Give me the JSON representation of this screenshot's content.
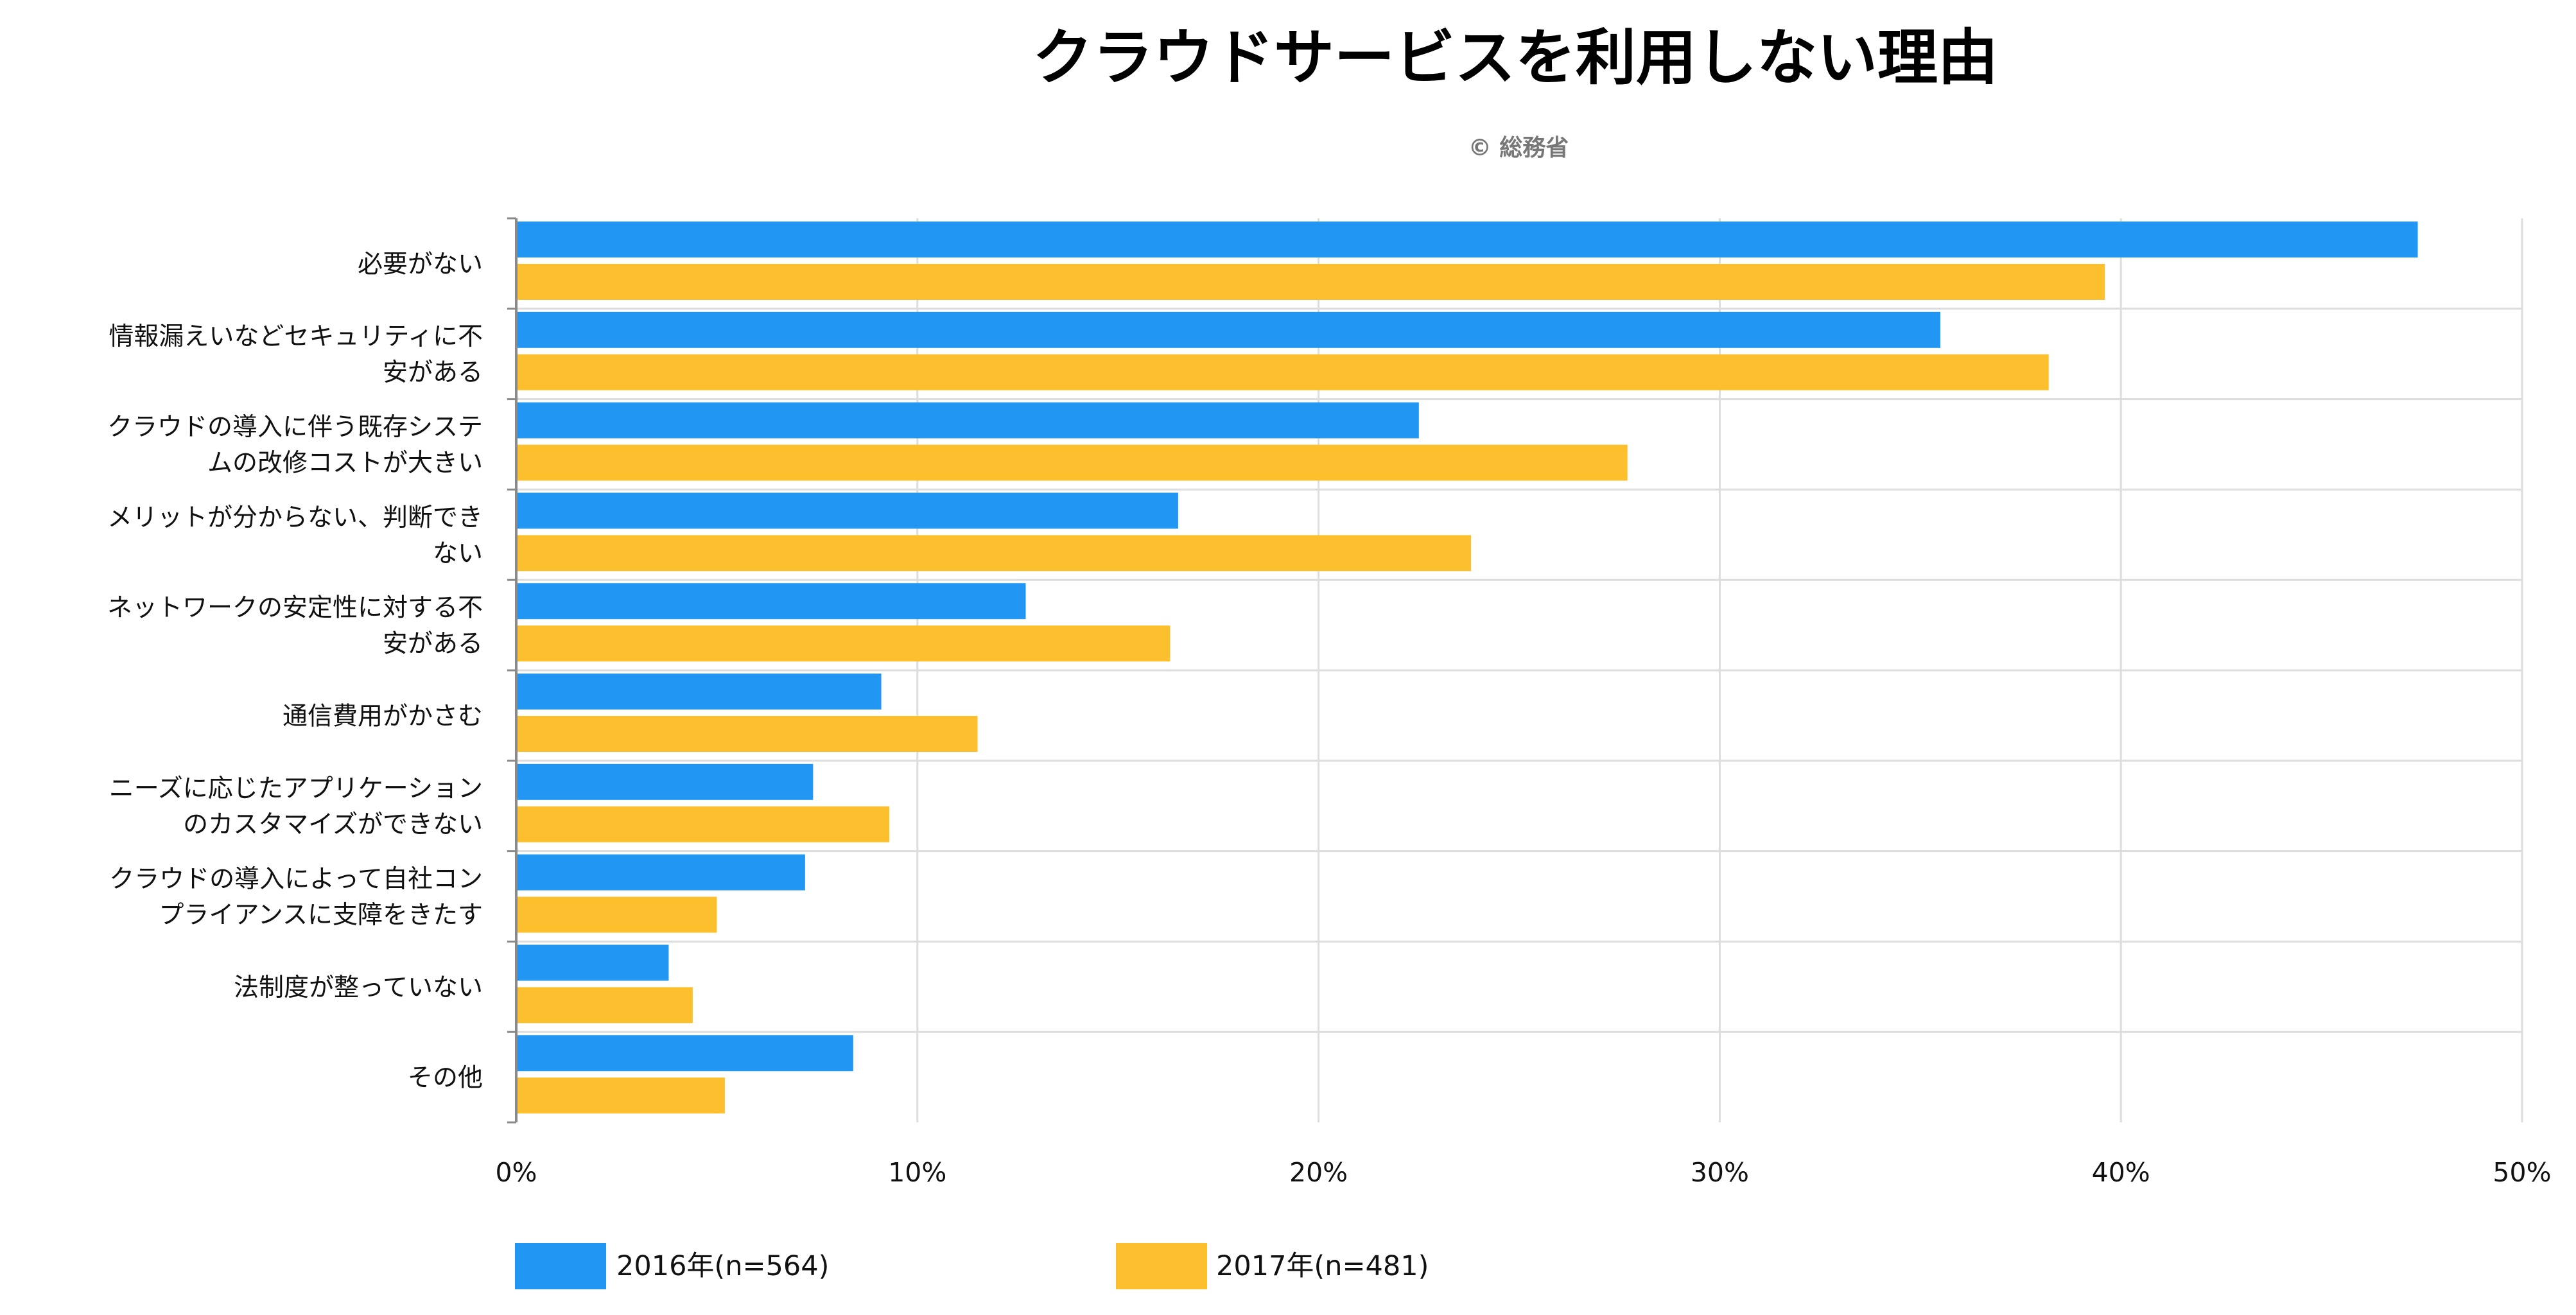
{
  "colors": {
    "series_2016": "#2196f3",
    "series_2017": "#fcc02e",
    "grid": "#dddddd",
    "axis": "#8a8a8a"
  },
  "chart_data": {
    "type": "bar",
    "orientation": "horizontal",
    "title": "クラウドサービスを利用しない理由",
    "subtitle": "© 総務省",
    "unit": "%",
    "xlim": [
      0,
      50
    ],
    "ticks": [
      0,
      10,
      20,
      30,
      40,
      50
    ],
    "tick_labels": [
      "0%",
      "10%",
      "20%",
      "30%",
      "40%",
      "50%"
    ],
    "grid": true,
    "legend_position": "bottom",
    "categories": [
      [
        "必要がない"
      ],
      [
        "情報漏えいなどセキュリティに不",
        "安がある"
      ],
      [
        "クラウドの導入に伴う既存システ",
        "ムの改修コストが大きい"
      ],
      [
        "メリットが分からない、判断でき",
        "ない"
      ],
      [
        "ネットワークの安定性に対する不",
        "安がある"
      ],
      [
        "通信費用がかさむ"
      ],
      [
        "ニーズに応じたアプリケーション",
        "のカスタマイズができない"
      ],
      [
        "クラウドの導入によって自社コン",
        "プライアンスに支障をきたす"
      ],
      [
        "法制度が整っていない"
      ],
      [
        "その他"
      ]
    ],
    "series": [
      {
        "name": "2016年(n=564)",
        "values": [
          47.4,
          35.5,
          22.5,
          16.5,
          12.7,
          9.1,
          7.4,
          7.2,
          3.8,
          8.4
        ]
      },
      {
        "name": "2017年(n=481)",
        "values": [
          39.6,
          38.2,
          27.7,
          23.8,
          16.3,
          11.5,
          9.3,
          5.0,
          4.4,
          5.2
        ]
      }
    ]
  }
}
